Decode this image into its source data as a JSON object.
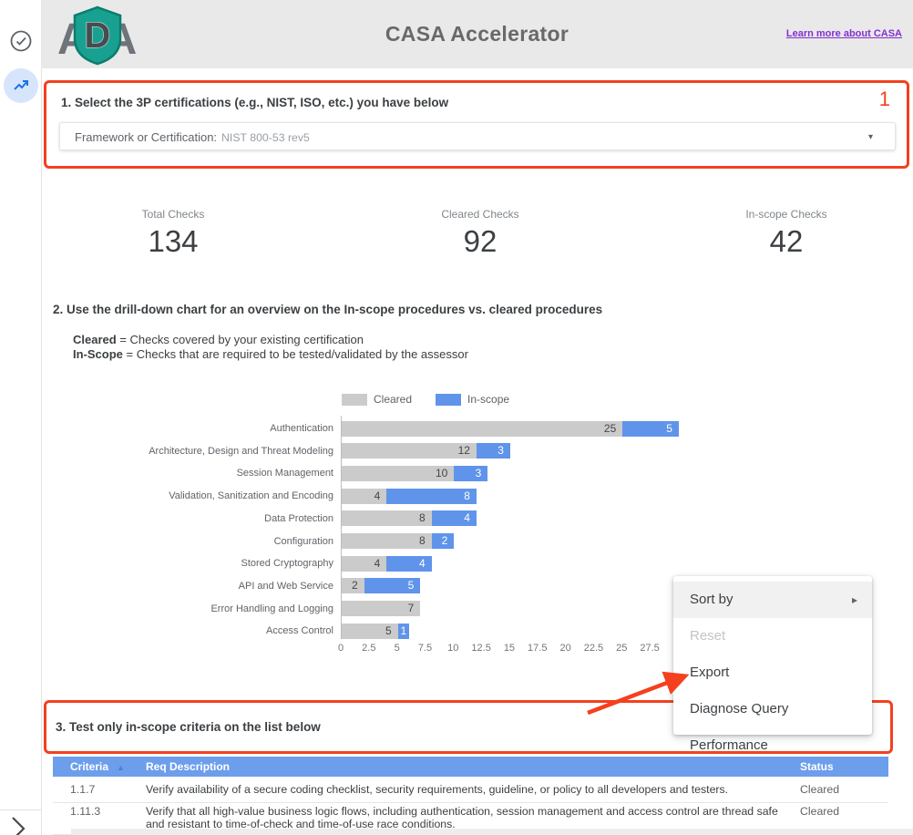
{
  "colors": {
    "accent_red": "#f4401f",
    "bar_gray": "#cbcbcb",
    "bar_blue": "#5f94ea",
    "table_header_blue": "#6d9eeb",
    "link_purple": "#8430ce"
  },
  "header": {
    "title": "CASA Accelerator",
    "link_label": "Learn more about CASA",
    "logo": {
      "l1": "A",
      "l2": "D",
      "l3": "A"
    }
  },
  "section1": {
    "title": "1. Select the 3P certifications (e.g., NIST, ISO, etc.) you have below",
    "marker": "1",
    "dropdown_label": "Framework or Certification:",
    "dropdown_value": "NIST 800-53 rev5",
    "dropdown_caret": "▾"
  },
  "scorecards": [
    {
      "label": "Total Checks",
      "value": "134"
    },
    {
      "label": "Cleared Checks",
      "value": "92"
    },
    {
      "label": "In-scope Checks",
      "value": "42"
    }
  ],
  "section2": {
    "title": "2. Use the drill-down chart for an overview on the In-scope procedures vs. cleared procedures",
    "definitions": [
      {
        "term": "Cleared",
        "rest": " = Checks covered by your existing certification"
      },
      {
        "term": "In-Scope",
        "rest": " = Checks that are required to be tested/validated by the assessor"
      }
    ]
  },
  "chart_data": {
    "type": "bar",
    "orientation": "horizontal",
    "stacked": true,
    "categories": [
      "Authentication",
      "Architecture, Design and Threat Modeling",
      "Session Management",
      "Validation, Sanitization and Encoding",
      "Data Protection",
      "Configuration",
      "Stored Cryptography",
      "API and Web Service",
      "Error Handling and Logging",
      "Access Control"
    ],
    "series": [
      {
        "name": "Cleared",
        "color": "#cbcbcb",
        "values": [
          25,
          12,
          10,
          4,
          8,
          8,
          4,
          2,
          7,
          5
        ]
      },
      {
        "name": "In-scope",
        "color": "#5f94ea",
        "values": [
          5,
          3,
          3,
          8,
          4,
          2,
          4,
          5,
          0,
          1
        ]
      }
    ],
    "x_ticks": [
      0,
      2.5,
      5,
      7.5,
      10,
      12.5,
      15,
      17.5,
      20,
      22.5,
      25,
      27.5
    ],
    "xlim": [
      0,
      30
    ],
    "legend_position": "top",
    "grid": false,
    "title": "",
    "xlabel": "",
    "ylabel": ""
  },
  "context_menu": {
    "items": [
      {
        "label": "Sort by",
        "submenu": true,
        "state": "hover"
      },
      {
        "label": "Reset",
        "submenu": false,
        "state": "disabled"
      },
      {
        "label": "Export",
        "submenu": false,
        "state": "normal"
      },
      {
        "label": "Diagnose Query Performance",
        "submenu": false,
        "state": "normal"
      }
    ],
    "submenu_arrow": "▸"
  },
  "section3": {
    "title": "3. Test only in-scope criteria on the list below"
  },
  "table": {
    "headers": [
      "Criteria",
      "Req Description",
      "Status"
    ],
    "sort_icon": "▲",
    "rows": [
      {
        "criteria": "1.1.7",
        "description": "Verify availability of a secure coding checklist, security requirements, guideline, or policy to all developers and testers.",
        "status": "Cleared"
      },
      {
        "criteria": "1.11.3",
        "description": "Verify that all high-value business logic flows, including authentication, session management and access control are thread safe and resistant to time-of-check and time-of-use race conditions.",
        "status": "Cleared"
      }
    ]
  }
}
